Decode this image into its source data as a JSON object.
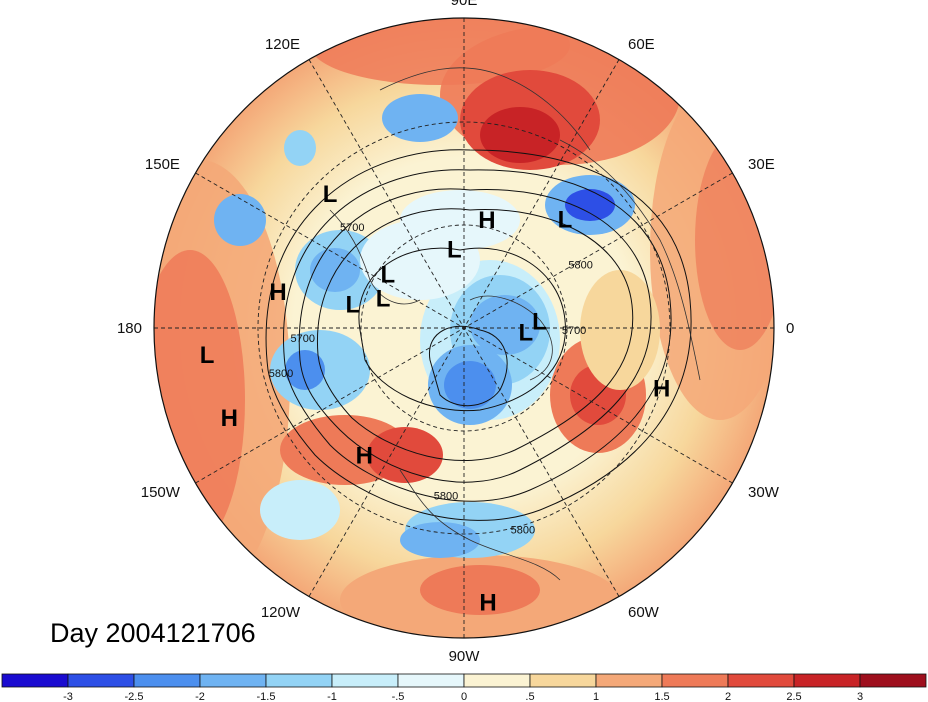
{
  "title": "Day 2004121706",
  "longitude_labels": [
    {
      "text": "90E",
      "lon": 90
    },
    {
      "text": "60E",
      "lon": 60
    },
    {
      "text": "30E",
      "lon": 30
    },
    {
      "text": "0",
      "lon": 0
    },
    {
      "text": "30W",
      "lon": -30
    },
    {
      "text": "60W",
      "lon": -60
    },
    {
      "text": "90W",
      "lon": -90
    },
    {
      "text": "120W",
      "lon": -120
    },
    {
      "text": "150W",
      "lon": -150
    },
    {
      "text": "180",
      "lon": 180
    },
    {
      "text": "150E",
      "lon": 150
    },
    {
      "text": "120E",
      "lon": 120
    }
  ],
  "pressure_centers": [
    {
      "type": "H",
      "lon": 78,
      "lat": 58
    },
    {
      "type": "L",
      "lon": 47,
      "lat": 47
    },
    {
      "type": "L",
      "lon": 97,
      "lat": 67
    },
    {
      "type": "L",
      "lon": 145,
      "lat": 63
    },
    {
      "type": "L",
      "lon": 135,
      "lat": 35
    },
    {
      "type": "H",
      "lon": 169,
      "lat": 35
    },
    {
      "type": "L",
      "lon": -174,
      "lat": 15
    },
    {
      "type": "H",
      "lon": -159,
      "lat": 17
    },
    {
      "type": "H",
      "lon": -128,
      "lat": 43
    },
    {
      "type": "L",
      "lon": 160,
      "lat": 65
    },
    {
      "type": "L",
      "lon": 168,
      "lat": 57
    },
    {
      "type": "L",
      "lon": 5,
      "lat": 68
    },
    {
      "type": "L",
      "lon": -4,
      "lat": 72
    },
    {
      "type": "H",
      "lon": -17,
      "lat": 30
    },
    {
      "type": "H",
      "lon": -85,
      "lat": 10
    }
  ],
  "contour_labels": [
    {
      "text": "5700",
      "lon": 139,
      "lat": 47
    },
    {
      "text": "5800",
      "lon": 27,
      "lat": 52
    },
    {
      "text": "5700",
      "lon": -175,
      "lat": 43
    },
    {
      "text": "5800",
      "lon": -165,
      "lat": 35
    },
    {
      "text": "5700",
      "lon": -3,
      "lat": 58
    },
    {
      "text": "5800",
      "lon": -96,
      "lat": 40
    },
    {
      "text": "5800",
      "lon": -74,
      "lat": 28
    }
  ],
  "colorbar": {
    "tick_labels": [
      "-3",
      "-2.5",
      "-2",
      "-1.5",
      "-1",
      "-.5",
      "0",
      ".5",
      "1",
      "1.5",
      "2",
      "2.5",
      "3"
    ],
    "colors": [
      "#1a0bd0",
      "#2d4fe6",
      "#4c8fee",
      "#6fb3f2",
      "#93d3f5",
      "#c8eefa",
      "#e6f7fb",
      "#fbf3d3",
      "#f7d79c",
      "#f4a878",
      "#ee7a58",
      "#e14a3c",
      "#c82326",
      "#9e0f1d"
    ]
  }
}
